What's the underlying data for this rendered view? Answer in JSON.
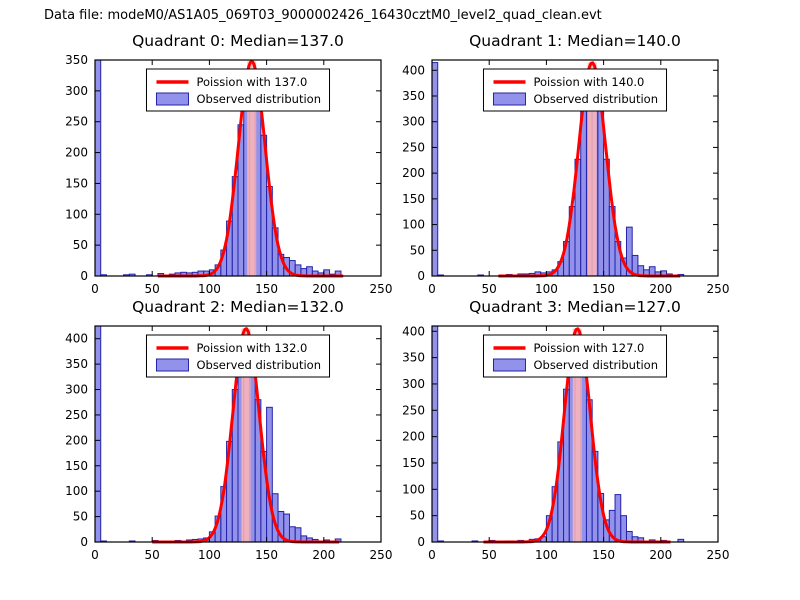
{
  "figure_title": "Data file: modeM0/AS1A05_069T03_9000002426_16430cztM0_level2_quad_clean.evt",
  "colors": {
    "curve": "#ff0000",
    "band": "#ffb6b6",
    "bar_fill": "#7f7fe8",
    "bar_edge": "#2323aa",
    "axis": "#000000",
    "background": "#ffffff"
  },
  "chart_data": [
    {
      "type": "histogram+line",
      "title": "Quadrant 0: Median=137.0",
      "legend": [
        "Poission with 137.0",
        "Observed distribution"
      ],
      "legend_loc": "upper center",
      "grid": false,
      "xlim": [
        0,
        250
      ],
      "ylim": [
        0,
        350
      ],
      "xticks": [
        0,
        50,
        100,
        150,
        200,
        250
      ],
      "yticks": [
        0,
        50,
        100,
        150,
        200,
        250,
        300,
        350
      ],
      "bins_start": 0,
      "bin_width": 5,
      "counts": [
        350,
        2,
        0,
        0,
        0,
        2,
        3,
        0,
        0,
        2,
        0,
        4,
        0,
        3,
        5,
        6,
        5,
        6,
        8,
        8,
        10,
        18,
        42,
        89,
        161,
        245,
        312,
        334,
        302,
        228,
        145,
        78,
        35,
        30,
        25,
        18,
        12,
        15,
        8,
        5,
        10,
        3,
        8,
        0
      ],
      "poisson_fit": {
        "mu": 137.0,
        "sigma": 11.7,
        "peak": 348
      }
    },
    {
      "type": "histogram+line",
      "title": "Quadrant 1: Median=140.0",
      "legend": [
        "Poission with 140.0",
        "Observed distribution"
      ],
      "legend_loc": "upper center",
      "grid": false,
      "xlim": [
        0,
        250
      ],
      "ylim": [
        0,
        420
      ],
      "xticks": [
        0,
        50,
        100,
        150,
        200,
        250
      ],
      "yticks": [
        0,
        50,
        100,
        150,
        200,
        250,
        300,
        350,
        400
      ],
      "bins_start": 0,
      "bin_width": 5,
      "counts": [
        415,
        2,
        0,
        0,
        0,
        0,
        0,
        0,
        2,
        0,
        0,
        0,
        0,
        3,
        0,
        4,
        4,
        5,
        8,
        6,
        8,
        12,
        28,
        67,
        135,
        227,
        321,
        390,
        378,
        321,
        227,
        135,
        67,
        35,
        95,
        40,
        20,
        12,
        18,
        8,
        10,
        4,
        0,
        3
      ],
      "poisson_fit": {
        "mu": 140.0,
        "sigma": 11.8,
        "peak": 415
      }
    },
    {
      "type": "histogram+line",
      "title": "Quadrant 2: Median=132.0",
      "legend": [
        "Poission with 132.0",
        "Observed distribution"
      ],
      "legend_loc": "upper center",
      "grid": false,
      "xlim": [
        0,
        250
      ],
      "ylim": [
        0,
        425
      ],
      "xticks": [
        0,
        50,
        100,
        150,
        200,
        250
      ],
      "yticks": [
        0,
        50,
        100,
        150,
        200,
        250,
        300,
        350,
        400
      ],
      "bins_start": 0,
      "bin_width": 5,
      "counts": [
        425,
        2,
        0,
        0,
        0,
        0,
        2,
        0,
        0,
        0,
        3,
        0,
        0,
        0,
        3,
        0,
        4,
        5,
        6,
        8,
        20,
        51,
        109,
        198,
        300,
        382,
        410,
        369,
        280,
        178,
        265,
        95,
        60,
        55,
        30,
        28,
        12,
        8,
        5,
        0,
        4,
        0,
        6,
        0
      ],
      "poisson_fit": {
        "mu": 132.0,
        "sigma": 11.5,
        "peak": 420
      }
    },
    {
      "type": "histogram+line",
      "title": "Quadrant 3: Median=127.0",
      "legend": [
        "Poission with 127.0",
        "Observed distribution"
      ],
      "legend_loc": "upper center",
      "grid": false,
      "xlim": [
        0,
        250
      ],
      "ylim": [
        0,
        410
      ],
      "xticks": [
        0,
        50,
        100,
        150,
        200,
        250
      ],
      "yticks": [
        0,
        50,
        100,
        150,
        200,
        250,
        300,
        350,
        400
      ],
      "bins_start": 0,
      "bin_width": 5,
      "counts": [
        410,
        2,
        0,
        0,
        0,
        0,
        0,
        2,
        0,
        0,
        3,
        0,
        0,
        2,
        0,
        3,
        0,
        5,
        6,
        10,
        50,
        105,
        190,
        290,
        370,
        397,
        357,
        270,
        172,
        92,
        42,
        60,
        90,
        50,
        20,
        10,
        8,
        0,
        4,
        0,
        3,
        0,
        0,
        5
      ],
      "poisson_fit": {
        "mu": 127.0,
        "sigma": 11.3,
        "peak": 405
      }
    }
  ]
}
